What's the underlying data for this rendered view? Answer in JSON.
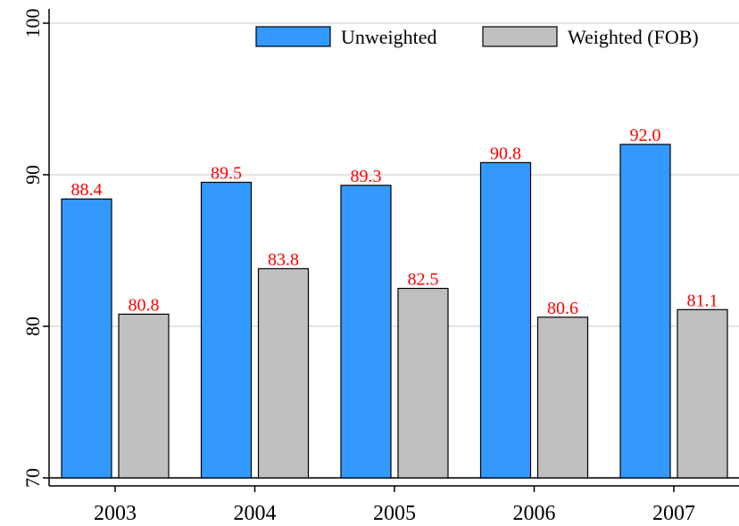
{
  "chart_data": {
    "type": "bar",
    "categories": [
      "2003",
      "2004",
      "2005",
      "2006",
      "2007"
    ],
    "series": [
      {
        "name": "Unweighted",
        "color": "#3399ff",
        "values": [
          88.4,
          89.5,
          89.3,
          90.8,
          92.0
        ],
        "value_labels": [
          "88.4",
          "89.5",
          "89.3",
          "90.8",
          "92.0"
        ]
      },
      {
        "name": "Weighted (FOB)",
        "color": "#c0c0c0",
        "values": [
          80.8,
          83.8,
          82.5,
          80.6,
          81.1
        ],
        "value_labels": [
          "80.8",
          "83.8",
          "82.5",
          "80.6",
          "81.1"
        ]
      }
    ],
    "ylim": [
      70,
      100
    ],
    "yticks": [
      70,
      80,
      90,
      100
    ],
    "grid": true,
    "legend": "top-right"
  }
}
